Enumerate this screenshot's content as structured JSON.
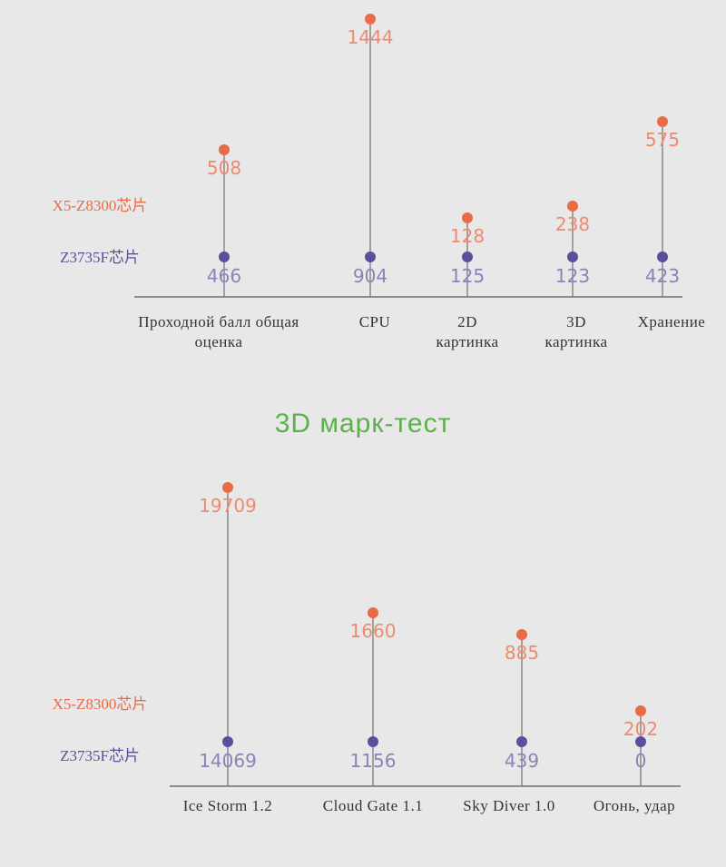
{
  "section_title": "3D марк-тест",
  "colors": {
    "background": "#e8e8e8",
    "orange": "#ea6a45",
    "purple": "#5a4f9c",
    "orange_label": "#ee8a70",
    "purple_label": "#8a83b8",
    "stem": "#7a7a7a",
    "axis": "#6e6e6e",
    "text": "#333333",
    "title": "#5cb04e"
  },
  "chart_data": [
    {
      "type": "lollipop",
      "legend_placement": "left",
      "categories": [
        "Проходной балл общая оценка",
        "CPU",
        "2D картинка",
        "3D картинка",
        "Хранение"
      ],
      "series": [
        {
          "name": "X5-Z8300芯片",
          "values": [
            508,
            1444,
            128,
            238,
            575
          ],
          "labels": [
            "508",
            "1444",
            "128",
            "238",
            "575"
          ]
        },
        {
          "name": "Z3735F芯片",
          "values": [
            466,
            904,
            125,
            123,
            423
          ],
          "labels": [
            "466",
            "904",
            "125",
            "123",
            "423"
          ]
        }
      ]
    },
    {
      "type": "lollipop",
      "legend_placement": "left",
      "categories": [
        "Ice Storm 1.2",
        "Cloud Gate 1.1",
        "Sky Diver 1.0",
        "Огонь, удар"
      ],
      "series": [
        {
          "name": "X5-Z8300芯片",
          "values": [
            19709,
            1660,
            885,
            202
          ],
          "labels": [
            "19709",
            "1660",
            "885",
            "202"
          ]
        },
        {
          "name": "Z3735F芯片",
          "values": [
            14069,
            1156,
            439,
            0
          ],
          "labels": [
            "14069",
            "1156",
            "439",
            "0"
          ]
        }
      ]
    }
  ]
}
